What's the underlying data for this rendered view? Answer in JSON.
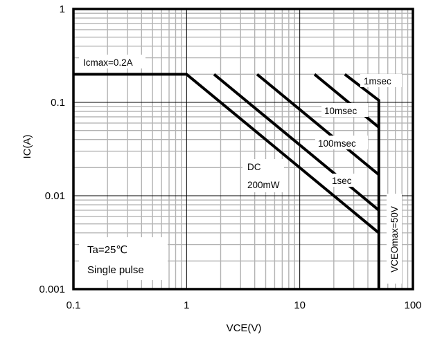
{
  "chart_data": {
    "type": "line",
    "title": "",
    "xlabel": "VCE(V)",
    "ylabel": "IC(A)",
    "xscale": "log",
    "yscale": "log",
    "xlim": [
      0.1,
      100
    ],
    "ylim": [
      0.001,
      1
    ],
    "grid": true,
    "x_tick_labels": [
      "0.1",
      "1",
      "10",
      "100"
    ],
    "y_tick_labels": [
      "0.001",
      "0.01",
      "0.1",
      "1"
    ],
    "x_ticks": [
      0.1,
      1,
      10,
      100
    ],
    "y_ticks": [
      0.001,
      0.01,
      0.1,
      1
    ],
    "series": [
      {
        "name": "DC 200mW",
        "x": [
          0.1,
          1.0,
          50
        ],
        "y": [
          0.2,
          0.2,
          0.004
        ]
      },
      {
        "name": "1sec",
        "x": [
          1.75,
          50
        ],
        "y": [
          0.2,
          0.007
        ]
      },
      {
        "name": "100msec",
        "x": [
          4.2,
          50
        ],
        "y": [
          0.2,
          0.0168
        ]
      },
      {
        "name": "10msec",
        "x": [
          13.5,
          50
        ],
        "y": [
          0.2,
          0.054
        ]
      },
      {
        "name": "1msec",
        "x": [
          25,
          50,
          50
        ],
        "y": [
          0.2,
          0.105,
          0.001
        ]
      }
    ],
    "annotations": {
      "icmax": "Icmax=0.2A",
      "dc_line1": "DC",
      "dc_line2": "200mW",
      "one_sec": "1sec",
      "hundred_msec": "100msec",
      "ten_msec": "10msec",
      "one_msec": "1msec",
      "vceo": "VCEOmax=50V",
      "ta": "Ta=25℃",
      "pulse": "Single pulse"
    }
  }
}
